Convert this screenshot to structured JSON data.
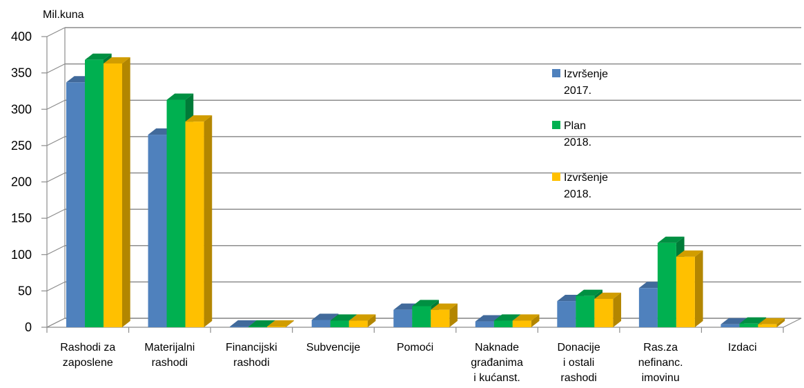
{
  "chart_data": {
    "type": "bar",
    "unit_label": "Mil.kuna",
    "categories": [
      [
        "Rashodi za",
        "zaposlene"
      ],
      [
        "Materijalni",
        "rashodi"
      ],
      [
        "Financijski",
        "rashodi"
      ],
      [
        "Subvencije"
      ],
      [
        "Pomoći"
      ],
      [
        "Naknade",
        "građanima",
        "i kućanst."
      ],
      [
        "Donacije",
        "i ostali",
        "rashodi"
      ],
      [
        "Ras.za",
        "nefinanc.",
        "imovinu"
      ],
      [
        "Izdaci"
      ]
    ],
    "series": [
      {
        "name": [
          "Izvršenje",
          "2017."
        ],
        "color": "#4f81bd",
        "values": [
          337,
          265,
          1,
          10,
          24,
          8,
          36,
          54,
          4
        ]
      },
      {
        "name": [
          "Plan",
          "2018."
        ],
        "color": "#00b050",
        "values": [
          368,
          313,
          1,
          9,
          29,
          9,
          43,
          116,
          5
        ]
      },
      {
        "name": [
          "Izvršenje",
          "2018."
        ],
        "color": "#ffc000",
        "values": [
          363,
          283,
          1,
          9,
          24,
          9,
          39,
          97,
          4
        ]
      }
    ],
    "yticks": [
      0,
      50,
      100,
      150,
      200,
      250,
      300,
      350,
      400
    ],
    "ylim": [
      0,
      400
    ],
    "grid": true,
    "legend_position": "right"
  }
}
